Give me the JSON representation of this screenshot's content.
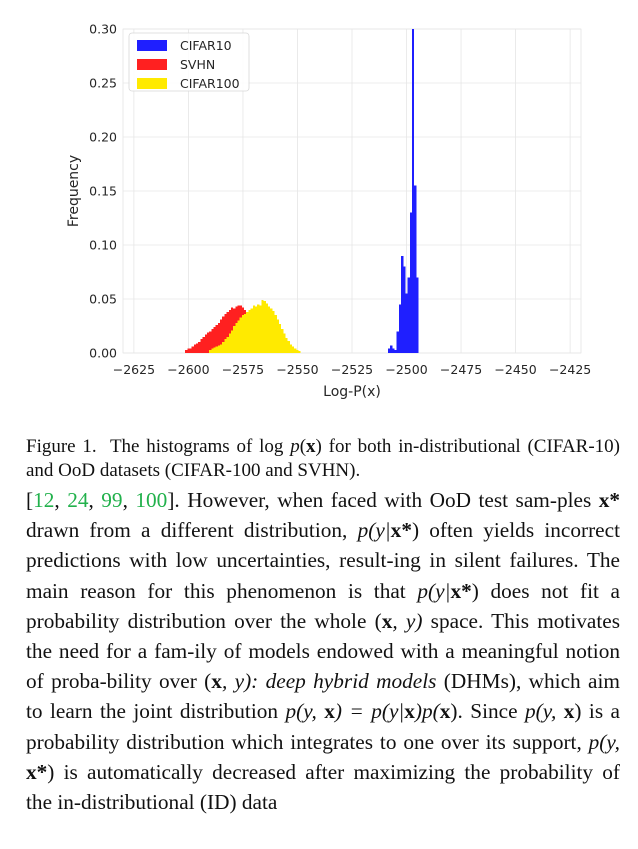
{
  "figure": {
    "chart_data": {
      "type": "histogram",
      "xlabel": "Log-P(x)",
      "ylabel": "Frequency",
      "xlim": [
        -2630,
        -2420
      ],
      "ylim": [
        0,
        0.3
      ],
      "xticks": [
        -2625,
        -2600,
        -2575,
        -2550,
        -2525,
        -2500,
        -2475,
        -2450,
        -2425
      ],
      "xtick_labels": [
        "−2625",
        "−2600",
        "−2575",
        "−2550",
        "−2525",
        "−2500",
        "−2475",
        "−2450",
        "−2425"
      ],
      "yticks": [
        0,
        0.05,
        0.1,
        0.15,
        0.2,
        0.25,
        0.3
      ],
      "ytick_labels": [
        "0.00",
        "0.05",
        "0.10",
        "0.15",
        "0.20",
        "0.25",
        "0.30"
      ],
      "grid": true,
      "legend_position": "top-left",
      "bin_width": 1,
      "series": [
        {
          "name": "CIFAR10",
          "color": "#1f1fff",
          "x": [
            -2508,
            -2507,
            -2506,
            -2505,
            -2504,
            -2503,
            -2502,
            -2501,
            -2500,
            -2499,
            -2498,
            -2497,
            -2496,
            -2495
          ],
          "values": [
            0.004,
            0.007,
            0.004,
            0.003,
            0.02,
            0.045,
            0.09,
            0.08,
            0.055,
            0.07,
            0.13,
            0.3,
            0.155,
            0.07
          ]
        },
        {
          "name": "SVHN",
          "color": "#ff2020",
          "x": [
            -2601,
            -2600,
            -2599,
            -2598,
            -2597,
            -2596,
            -2595,
            -2594,
            -2593,
            -2592,
            -2591,
            -2590,
            -2589,
            -2588,
            -2587,
            -2586,
            -2585,
            -2584,
            -2583,
            -2582,
            -2581,
            -2580,
            -2579,
            -2578,
            -2577,
            -2576,
            -2575,
            -2574,
            -2573
          ],
          "values": [
            0.003,
            0.004,
            0.004,
            0.006,
            0.008,
            0.009,
            0.01,
            0.013,
            0.015,
            0.017,
            0.019,
            0.02,
            0.022,
            0.024,
            0.026,
            0.028,
            0.031,
            0.034,
            0.036,
            0.038,
            0.04,
            0.042,
            0.041,
            0.043,
            0.044,
            0.044,
            0.042,
            0.04,
            0.038
          ]
        },
        {
          "name": "CIFAR100",
          "color": "#ffea00",
          "x": [
            -2590,
            -2589,
            -2588,
            -2587,
            -2586,
            -2585,
            -2584,
            -2583,
            -2582,
            -2581,
            -2580,
            -2579,
            -2578,
            -2577,
            -2576,
            -2575,
            -2574,
            -2573,
            -2572,
            -2571,
            -2570,
            -2569,
            -2568,
            -2567,
            -2566,
            -2565,
            -2564,
            -2563,
            -2562,
            -2561,
            -2560,
            -2559,
            -2558,
            -2557,
            -2556,
            -2555,
            -2554,
            -2553,
            -2552,
            -2551,
            -2550,
            -2549
          ],
          "values": [
            0.003,
            0.004,
            0.005,
            0.006,
            0.007,
            0.008,
            0.01,
            0.013,
            0.015,
            0.018,
            0.021,
            0.025,
            0.028,
            0.03,
            0.033,
            0.035,
            0.036,
            0.038,
            0.04,
            0.041,
            0.044,
            0.043,
            0.045,
            0.044,
            0.049,
            0.048,
            0.046,
            0.043,
            0.041,
            0.039,
            0.035,
            0.031,
            0.027,
            0.022,
            0.018,
            0.014,
            0.011,
            0.008,
            0.006,
            0.004,
            0.003,
            0.002
          ]
        }
      ]
    }
  },
  "caption": {
    "label": "Figure 1.",
    "text_1": "The histograms of log ",
    "math_p": "p",
    "math_open": "(",
    "math_x": "x",
    "math_close": ")",
    "text_2": " for both in-distributional (CIFAR-10) and OoD datasets (CIFAR-100 and SVHN)."
  },
  "paragraph": {
    "open_bracket": "[",
    "cite_1": "12",
    "comma_1": ", ",
    "cite_2": "24",
    "comma_2": ", ",
    "cite_3": "99",
    "comma_3": ", ",
    "cite_4": "100",
    "close_bracket": "].",
    "s1": " However, when faced with OoD test sam-ples ",
    "s1_bold": "x*",
    "s1b": " drawn from a different distribution, ",
    "m1": "p(y|",
    "m1_bold": "x*",
    "m1_end": ")",
    "s2": " often yields incorrect predictions with low uncertainties, result-ing in silent failures. The main reason for this phenomenon is that ",
    "m2": "p(y|",
    "m2_bold": "x*",
    "m2_end": ")",
    "s3": " does not fit a probability distribution over the whole (",
    "m3_bold": "x",
    "m3_end": ", y)",
    "s4": " space. This motivates the need for a fam-ily of models endowed with a meaningful notion of proba-bility over (",
    "m4_bold": "x",
    "m4_end": ", y):",
    "s5_space": " ",
    "s5_it": "deep hybrid models",
    "s5": " (DHMs), which aim to learn the joint distribution ",
    "m5a": "p(y, ",
    "m5a_bold": "x",
    "m5a_end": ") = p(y|",
    "m5b_bold": "x",
    "m5b_end": ")p(",
    "m5c_bold": "x",
    "m5c_end": ").",
    "s6": " Since ",
    "m6": "p(y, ",
    "m6_bold": "x",
    "m6_end": ")",
    "s7": " is a probability distribution which integrates to one over its support, ",
    "m7": "p(y, ",
    "m7_bold": "x*",
    "m7_end": ")",
    "s8": " is automatically decreased after maximizing the probability of the in-distributional (ID) data"
  }
}
